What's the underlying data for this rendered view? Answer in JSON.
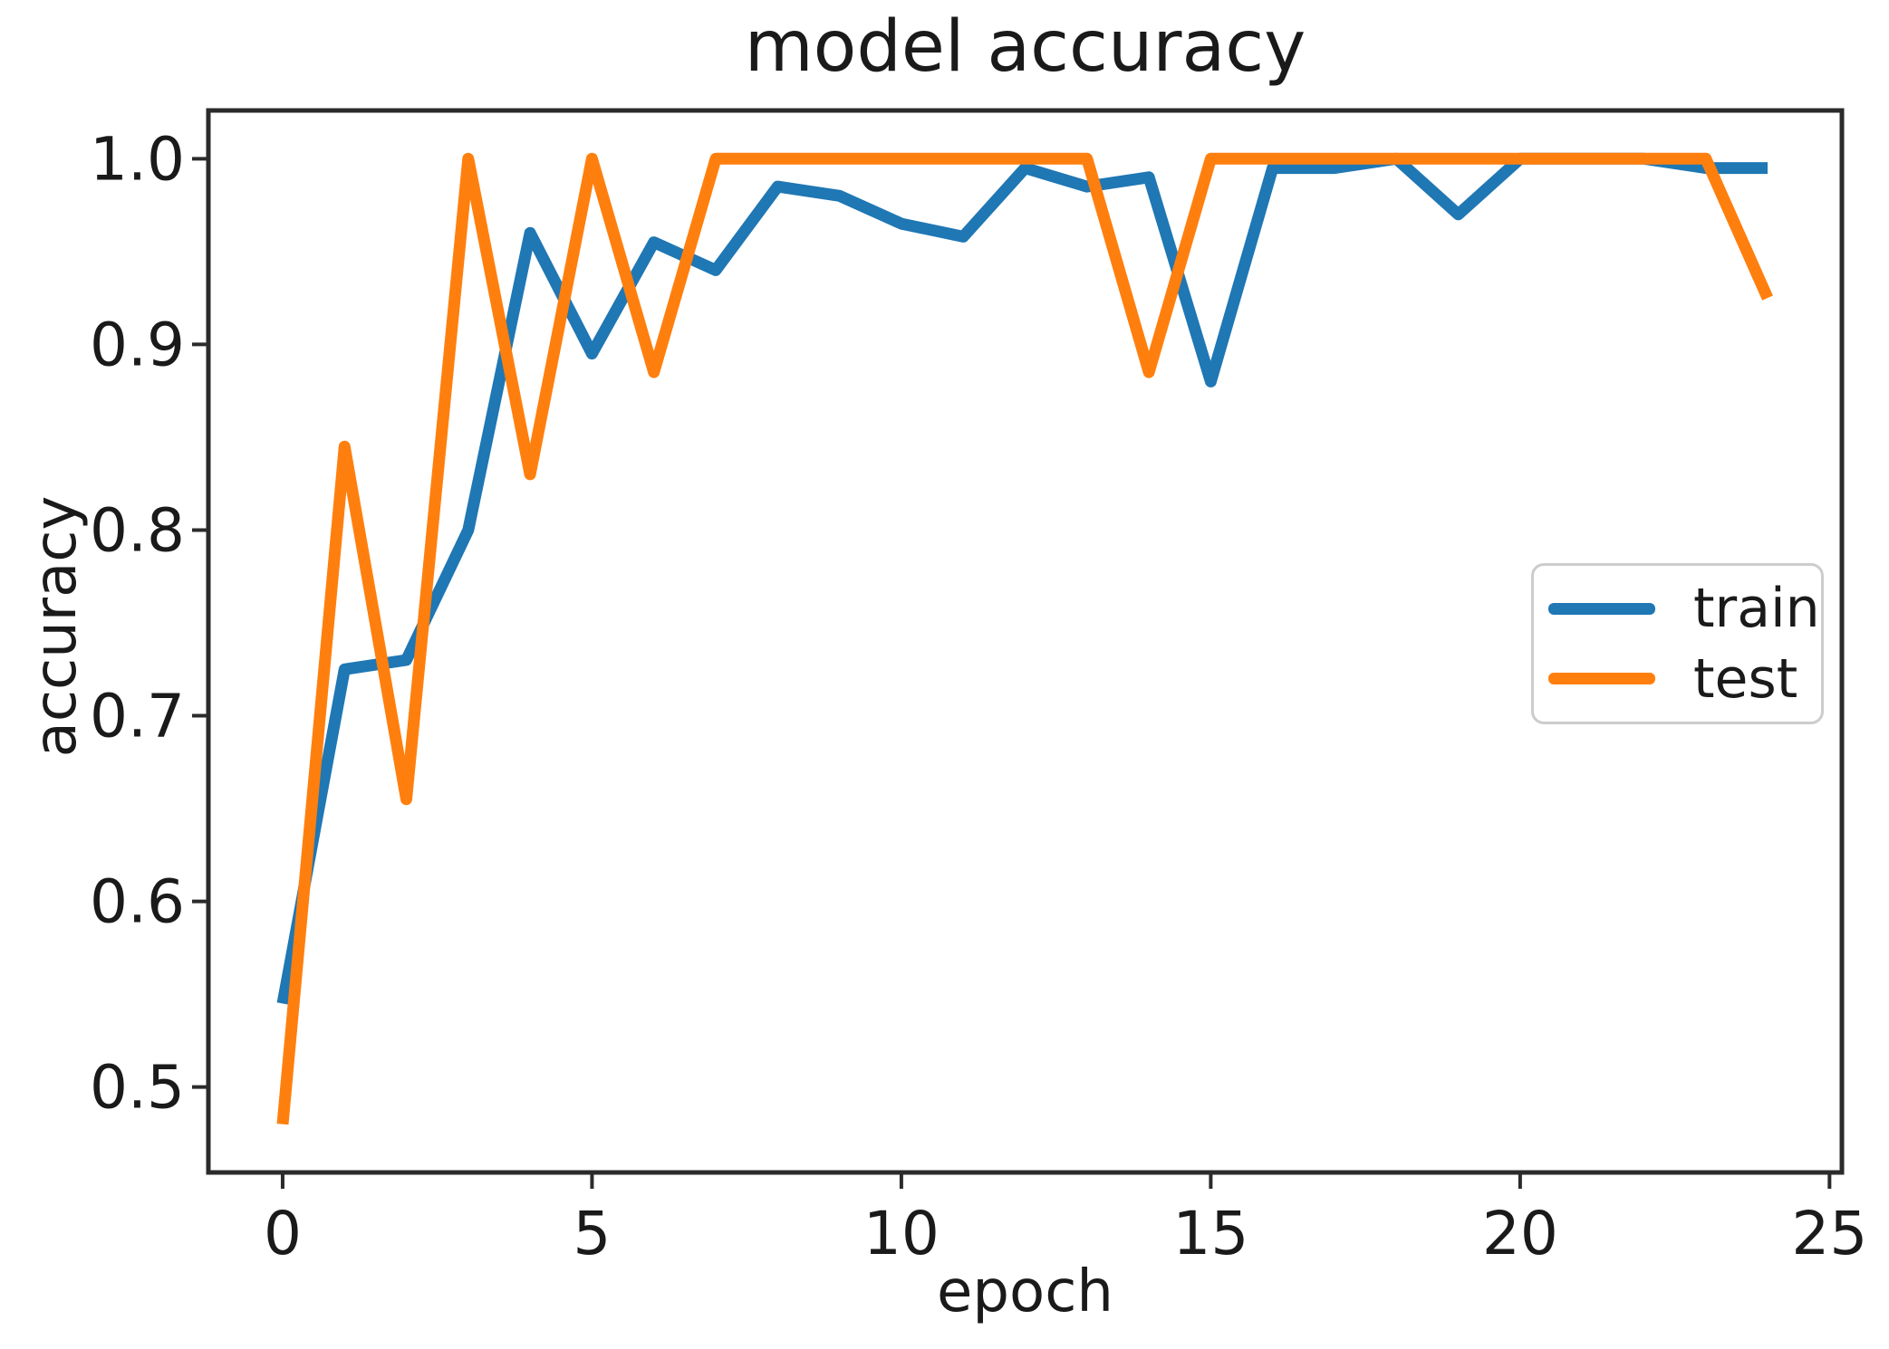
{
  "chart_data": {
    "type": "line",
    "title": "model accuracy",
    "xlabel": "epoch",
    "ylabel": "accuracy",
    "x": [
      0,
      1,
      2,
      3,
      4,
      5,
      6,
      7,
      8,
      9,
      10,
      11,
      12,
      13,
      14,
      15,
      16,
      17,
      18,
      19,
      20,
      21,
      22,
      23,
      24
    ],
    "series": [
      {
        "name": "train",
        "color": "#1f77b4",
        "values": [
          0.545,
          0.725,
          0.73,
          0.8,
          0.96,
          0.895,
          0.955,
          0.94,
          0.985,
          0.98,
          0.965,
          0.958,
          0.995,
          0.985,
          0.99,
          0.88,
          0.995,
          0.995,
          1.0,
          0.97,
          1.0,
          1.0,
          1.0,
          0.995,
          0.995
        ]
      },
      {
        "name": "test",
        "color": "#ff7f0e",
        "values": [
          0.48,
          0.845,
          0.655,
          1.0,
          0.83,
          1.0,
          0.885,
          1.0,
          1.0,
          1.0,
          1.0,
          1.0,
          1.0,
          1.0,
          0.885,
          1.0,
          1.0,
          1.0,
          1.0,
          1.0,
          1.0,
          1.0,
          1.0,
          1.0,
          0.925
        ]
      }
    ],
    "legend": {
      "position": "center right",
      "entries": [
        "train",
        "test"
      ]
    },
    "xticks": {
      "values": [
        0,
        5,
        10,
        15,
        20,
        25
      ],
      "labels": [
        "0",
        "5",
        "10",
        "15",
        "20",
        "25"
      ]
    },
    "yticks": {
      "values": [
        0.5,
        0.6,
        0.7,
        0.8,
        0.9,
        1.0
      ],
      "labels": [
        "0.5",
        "0.6",
        "0.7",
        "0.8",
        "0.9",
        "1.0"
      ]
    },
    "xlim": [
      -1.2,
      25.2
    ],
    "ylim": [
      0.454,
      1.026
    ],
    "grid": false,
    "colors": {
      "axis": "#2b2b2b",
      "text": "#1a1a1a",
      "legend_border": "#cccccc"
    }
  }
}
